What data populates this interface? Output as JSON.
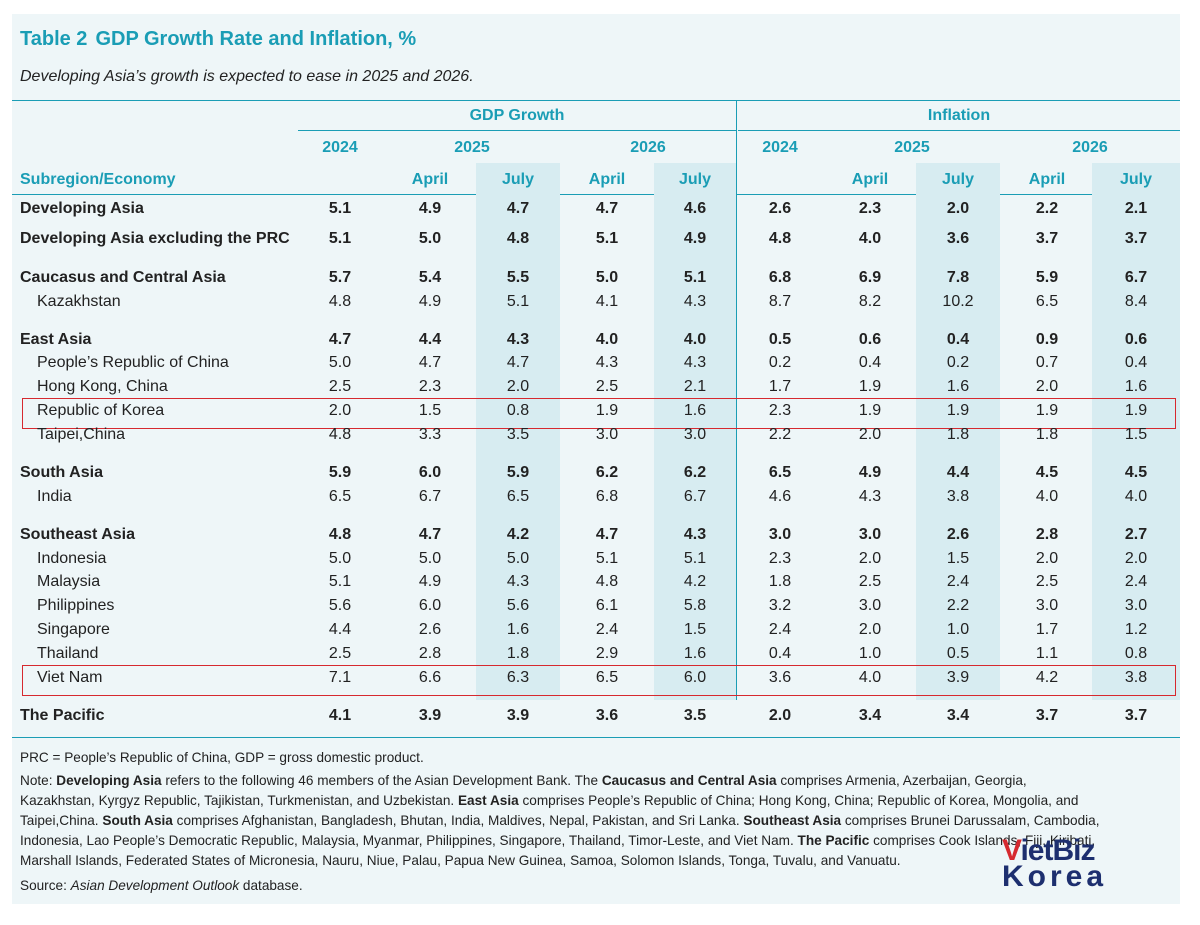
{
  "title": {
    "number": "Table 2",
    "text": "GDP Growth Rate and Inflation, %"
  },
  "subtitle": "Developing Asia’s growth is expected to ease in 2025 and 2026.",
  "headers": {
    "gdp_group": "GDP Growth",
    "inflation_group": "Inflation",
    "year_2024": "2024",
    "year_2025": "2025",
    "year_2026": "2026",
    "row_header": "Subregion/Economy",
    "april": "April",
    "july": "July"
  },
  "rows": [
    {
      "label": "Developing Asia",
      "bold": true,
      "values": [
        "5.1",
        "4.9",
        "4.7",
        "4.7",
        "4.6",
        "2.6",
        "2.3",
        "2.0",
        "2.2",
        "2.1"
      ]
    },
    {
      "label": "Developing Asia excluding the PRC",
      "bold": true,
      "values": [
        "5.1",
        "5.0",
        "4.8",
        "5.1",
        "4.9",
        "4.8",
        "4.0",
        "3.6",
        "3.7",
        "3.7"
      ]
    },
    {
      "label": "Caucasus and Central Asia",
      "bold": true,
      "values": [
        "5.7",
        "5.4",
        "5.5",
        "5.0",
        "5.1",
        "6.8",
        "6.9",
        "7.8",
        "5.9",
        "6.7"
      ]
    },
    {
      "label": "Kazakhstan",
      "bold": false,
      "values": [
        "4.8",
        "4.9",
        "5.1",
        "4.1",
        "4.3",
        "8.7",
        "8.2",
        "10.2",
        "6.5",
        "8.4"
      ]
    },
    {
      "label": "East Asia",
      "bold": true,
      "values": [
        "4.7",
        "4.4",
        "4.3",
        "4.0",
        "4.0",
        "0.5",
        "0.6",
        "0.4",
        "0.9",
        "0.6"
      ]
    },
    {
      "label": "People’s Republic of China",
      "bold": false,
      "values": [
        "5.0",
        "4.7",
        "4.7",
        "4.3",
        "4.3",
        "0.2",
        "0.4",
        "0.2",
        "0.7",
        "0.4"
      ]
    },
    {
      "label": "Hong Kong, China",
      "bold": false,
      "values": [
        "2.5",
        "2.3",
        "2.0",
        "2.5",
        "2.1",
        "1.7",
        "1.9",
        "1.6",
        "2.0",
        "1.6"
      ]
    },
    {
      "label": "Republic of Korea",
      "bold": false,
      "highlight": true,
      "values": [
        "2.0",
        "1.5",
        "0.8",
        "1.9",
        "1.6",
        "2.3",
        "1.9",
        "1.9",
        "1.9",
        "1.9"
      ]
    },
    {
      "label": "Taipei,China",
      "bold": false,
      "values": [
        "4.8",
        "3.3",
        "3.5",
        "3.0",
        "3.0",
        "2.2",
        "2.0",
        "1.8",
        "1.8",
        "1.5"
      ]
    },
    {
      "label": "South Asia",
      "bold": true,
      "values": [
        "5.9",
        "6.0",
        "5.9",
        "6.2",
        "6.2",
        "6.5",
        "4.9",
        "4.4",
        "4.5",
        "4.5"
      ]
    },
    {
      "label": "India",
      "bold": false,
      "values": [
        "6.5",
        "6.7",
        "6.5",
        "6.8",
        "6.7",
        "4.6",
        "4.3",
        "3.8",
        "4.0",
        "4.0"
      ]
    },
    {
      "label": "Southeast Asia",
      "bold": true,
      "values": [
        "4.8",
        "4.7",
        "4.2",
        "4.7",
        "4.3",
        "3.0",
        "3.0",
        "2.6",
        "2.8",
        "2.7"
      ]
    },
    {
      "label": "Indonesia",
      "bold": false,
      "values": [
        "5.0",
        "5.0",
        "5.0",
        "5.1",
        "5.1",
        "2.3",
        "2.0",
        "1.5",
        "2.0",
        "2.0"
      ]
    },
    {
      "label": "Malaysia",
      "bold": false,
      "values": [
        "5.1",
        "4.9",
        "4.3",
        "4.8",
        "4.2",
        "1.8",
        "2.5",
        "2.4",
        "2.5",
        "2.4"
      ]
    },
    {
      "label": "Philippines",
      "bold": false,
      "values": [
        "5.6",
        "6.0",
        "5.6",
        "6.1",
        "5.8",
        "3.2",
        "3.0",
        "2.2",
        "3.0",
        "3.0"
      ]
    },
    {
      "label": "Singapore",
      "bold": false,
      "values": [
        "4.4",
        "2.6",
        "1.6",
        "2.4",
        "1.5",
        "2.4",
        "2.0",
        "1.0",
        "1.7",
        "1.2"
      ]
    },
    {
      "label": "Thailand",
      "bold": false,
      "values": [
        "2.5",
        "2.8",
        "1.8",
        "2.9",
        "1.6",
        "0.4",
        "1.0",
        "0.5",
        "1.1",
        "0.8"
      ]
    },
    {
      "label": "Viet Nam",
      "bold": false,
      "highlight": true,
      "values": [
        "7.1",
        "6.6",
        "6.3",
        "6.5",
        "6.0",
        "3.6",
        "4.0",
        "3.9",
        "4.2",
        "3.8"
      ]
    },
    {
      "label": "The Pacific",
      "bold": true,
      "values": [
        "4.1",
        "3.9",
        "3.9",
        "3.6",
        "3.5",
        "2.0",
        "3.4",
        "3.4",
        "3.7",
        "3.7"
      ]
    }
  ],
  "footnotes": {
    "abbrev": "PRC = People’s Republic of China, GDP = gross domestic product.",
    "note_prefix": "Note: ",
    "dev_asia": "Developing Asia",
    "note_1": " refers to the following 46 members of the Asian Development Bank. The ",
    "cca": "Caucasus and Central Asia",
    "note_2": " comprises Armenia, Azerbaijan, Georgia,",
    "note_3": "Kazakhstan, Kyrgyz Republic, Tajikistan, Turkmenistan, and Uzbekistan. ",
    "ea": "East Asia",
    "note_4": " comprises People’s Republic of China; Hong Kong, China; Republic of Korea, Mongolia, and",
    "note_5": "Taipei,China. ",
    "sa": "South Asia",
    "note_6": " comprises Afghanistan, Bangladesh, Bhutan, India, Maldives, Nepal, Pakistan, and Sri Lanka. ",
    "sea": "Southeast Asia",
    "note_7": " comprises Brunei Darussalam, Cambodia,",
    "note_8": "Indonesia, Lao People’s Democratic Republic, Malaysia, Myanmar, Philippines, Singapore, Thailand, Timor-Leste, and Viet Nam. ",
    "pac": "The Pacific",
    "note_9": " comprises Cook Islands, Fiji, Kiribati,",
    "note_10": "Marshall Islands, Federated States of Micronesia, Nauru, Niue, Palau, Papua New Guinea, Samoa, Solomon Islands, Tonga, Tuvalu, and Vanuatu.",
    "source_prefix": "Source: ",
    "source_name": "Asian Development Outlook",
    "source_suffix": " database."
  },
  "watermark": {
    "part1": "V",
    "part2": "ietBiz",
    "part3": "Korea"
  },
  "colors": {
    "accent": "#1a9db5",
    "highlight": "#d6292f",
    "shade": "#d7ecf1",
    "panel": "#eef6f8"
  }
}
